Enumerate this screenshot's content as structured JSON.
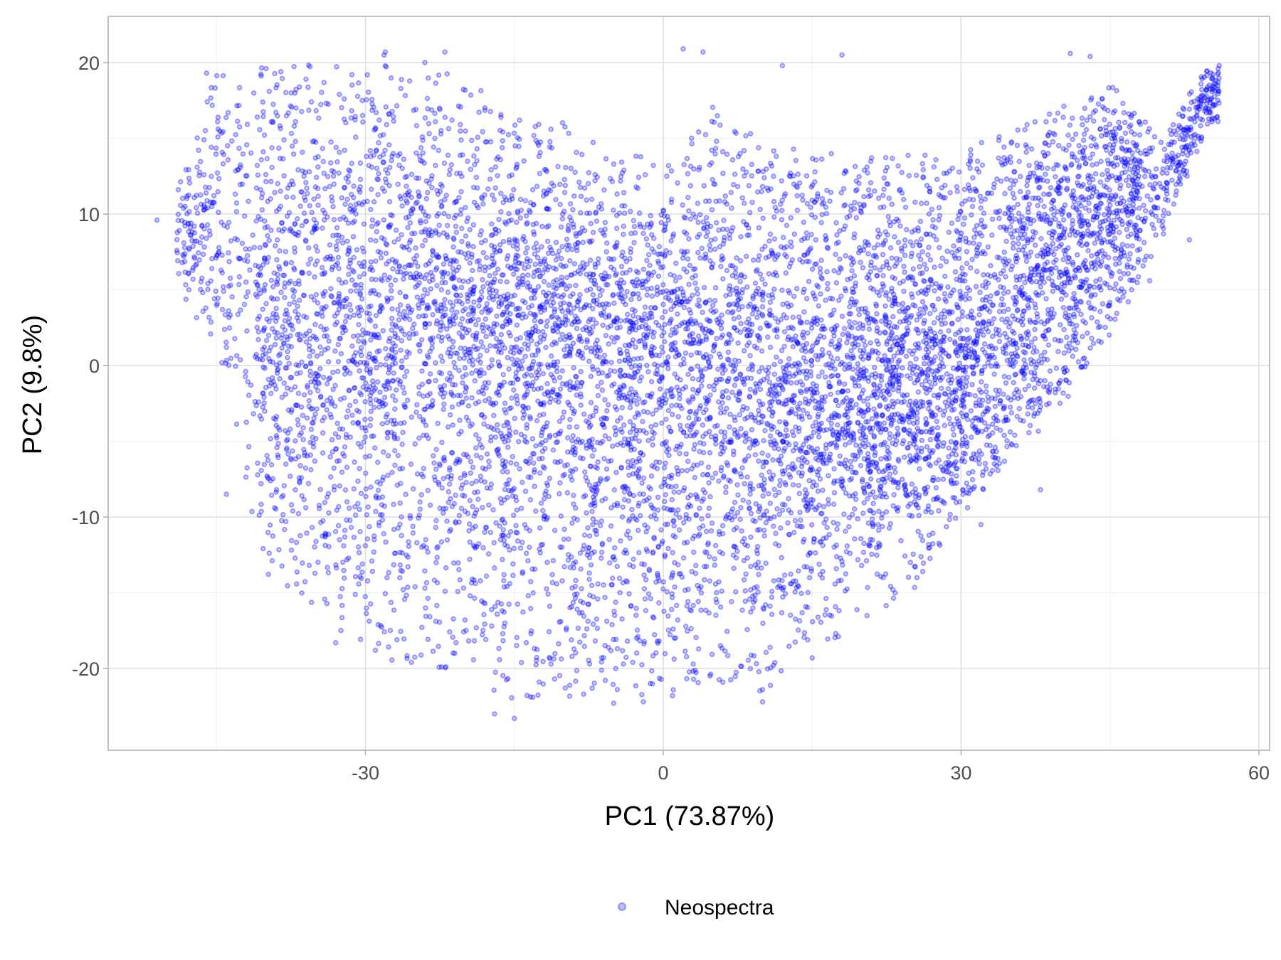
{
  "chart_data": {
    "type": "scatter",
    "title": "",
    "xlabel": "PC1 (73.87%)",
    "ylabel": "PC2 (9.8%)",
    "xlim": [
      -51,
      60
    ],
    "ylim": [
      -25.5,
      23.2
    ],
    "x_ticks": [
      -30,
      0,
      30,
      60
    ],
    "y_ticks": [
      -20,
      -10,
      0,
      10,
      20
    ],
    "x_tick_labels": [
      "-30",
      "0",
      "30",
      "60"
    ],
    "y_tick_labels": [
      "-20",
      "-10",
      "0",
      "10",
      "20"
    ],
    "grid": true,
    "legend_position": "bottom",
    "series": [
      {
        "name": "Neospectra",
        "color": "#0000ff",
        "point_count_estimate": 9000,
        "shape": "u-shaped cloud",
        "envelope_pc1": [
          -50,
          -45,
          -40,
          -35,
          -30,
          -25,
          -20,
          -15,
          -10,
          -5,
          0,
          5,
          10,
          15,
          20,
          25,
          30,
          35,
          40,
          45,
          50,
          55
        ],
        "envelope_pc2_lower": [
          6,
          1,
          -14,
          -16,
          -19,
          -20,
          -21,
          -22,
          -22,
          -22,
          -22,
          -21,
          -22,
          -19,
          -17,
          -15,
          -10,
          -6,
          -3,
          2,
          8,
          16
        ],
        "envelope_pc2_upper": [
          10,
          19.5,
          20,
          20,
          20.5,
          20.5,
          19,
          17,
          16,
          14,
          14,
          18,
          15,
          14,
          14,
          14,
          14,
          16,
          17,
          19,
          15,
          20
        ],
        "dense_region_center": [
          -12,
          5
        ],
        "secondary_dense_center": [
          20,
          -3
        ],
        "notable_points": [
          {
            "x": -46,
            "y": 19.3
          },
          {
            "x": -40,
            "y": 19.6
          },
          {
            "x": -37,
            "y": 17
          },
          {
            "x": -28,
            "y": 20.7
          },
          {
            "x": -22,
            "y": 20.7
          },
          {
            "x": 2,
            "y": 20.9
          },
          {
            "x": 4,
            "y": 20.7
          },
          {
            "x": 12,
            "y": 19.8
          },
          {
            "x": 18,
            "y": 20.5
          },
          {
            "x": 41,
            "y": 20.6
          },
          {
            "x": 43,
            "y": 20.4
          },
          {
            "x": 56,
            "y": 19.8
          },
          {
            "x": 55,
            "y": 18.5
          },
          {
            "x": -51,
            "y": 9.6
          },
          {
            "x": -49,
            "y": 7.6
          },
          {
            "x": -47,
            "y": 6.7
          },
          {
            "x": -44,
            "y": 1.2
          },
          {
            "x": -44,
            "y": -8.5
          },
          {
            "x": -15,
            "y": -23.3
          },
          {
            "x": -17,
            "y": -23
          },
          {
            "x": -5,
            "y": -22.3
          },
          {
            "x": -2,
            "y": -22.2
          },
          {
            "x": 10,
            "y": -22.2
          },
          {
            "x": 10,
            "y": -21.4
          },
          {
            "x": -21,
            "y": -19
          },
          {
            "x": -29,
            "y": -18.8
          },
          {
            "x": -33,
            "y": -18.3
          },
          {
            "x": 6,
            "y": -20.9
          },
          {
            "x": 15,
            "y": -19.3
          },
          {
            "x": 32,
            "y": -10.5
          },
          {
            "x": 38,
            "y": -8.2
          },
          {
            "x": 40,
            "y": -1
          },
          {
            "x": 53,
            "y": 8.3
          },
          {
            "x": 49,
            "y": 5.6
          }
        ]
      }
    ]
  },
  "legend": {
    "items": [
      {
        "label": "Neospectra",
        "color": "#0000ff"
      }
    ]
  }
}
